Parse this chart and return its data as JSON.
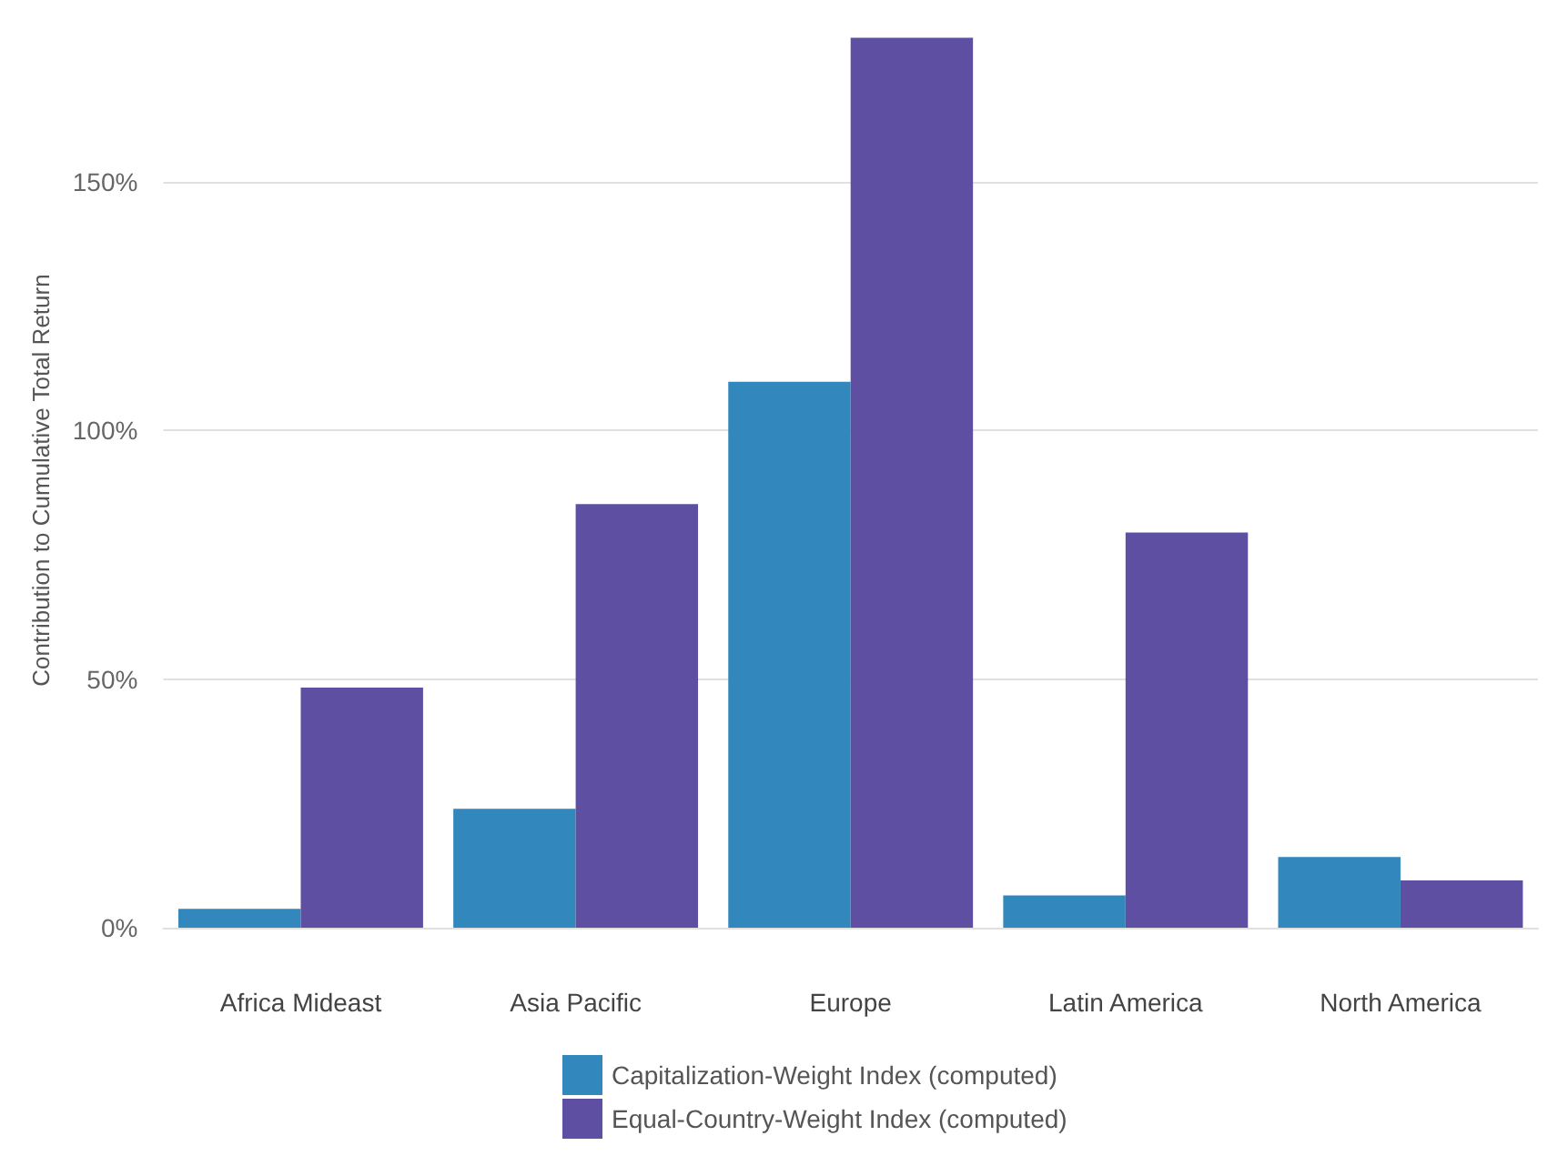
{
  "chart_data": {
    "type": "bar",
    "ylabel": "Contribution to Cumulative Total Return",
    "categories": [
      "Africa Mideast",
      "Asia Pacific",
      "Europe",
      "Latin America",
      "North America"
    ],
    "series": [
      {
        "name": "Capitalization-Weight Index (computed)",
        "color": "#3288bd",
        "values": [
          3.8,
          23.9,
          109.8,
          6.5,
          14.2
        ]
      },
      {
        "name": "Equal-Country-Weight Index (computed)",
        "color": "#5e4fa2",
        "values": [
          48.3,
          85.2,
          179,
          79.5,
          9.5
        ]
      }
    ],
    "ylim": [
      0,
      180
    ],
    "yticks": [
      {
        "value": 0,
        "label": "0%"
      },
      {
        "value": 50,
        "label": "50%"
      },
      {
        "value": 100,
        "label": "100%"
      },
      {
        "value": 150,
        "label": "150%"
      }
    ],
    "grid": "y",
    "legend": "bottom"
  }
}
